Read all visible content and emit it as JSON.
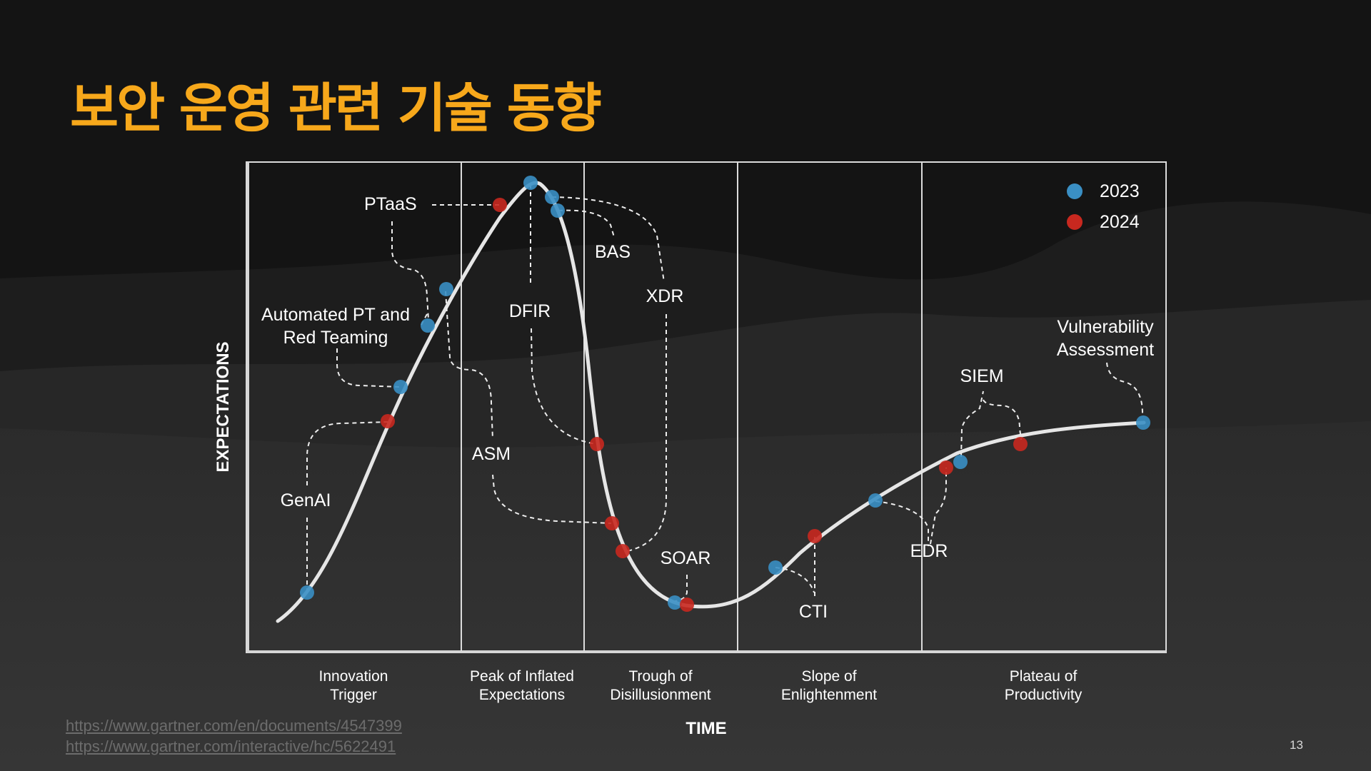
{
  "slide": {
    "title": "보안 운영 관련 기술 동향",
    "page_number": "13",
    "links": [
      "https://www.gartner.com/en/documents/4547399",
      "https://www.gartner.com/interactive/hc/5622491"
    ]
  },
  "chart": {
    "y_axis_label": "EXPECTATIONS",
    "x_axis_label": "TIME",
    "phases": [
      {
        "line1": "Innovation",
        "line2": "Trigger"
      },
      {
        "line1": "Peak of Inflated",
        "line2": "Expectations"
      },
      {
        "line1": "Trough of",
        "line2": "Disillusionment"
      },
      {
        "line1": "Slope of",
        "line2": "Enlightenment"
      },
      {
        "line1": "Plateau of",
        "line2": "Productivity"
      }
    ],
    "legend": [
      {
        "label": "2023",
        "color": "#3a8fc4"
      },
      {
        "label": "2024",
        "color": "#c8281f"
      }
    ],
    "technologies": [
      {
        "name": "GenAI",
        "year": "2023"
      },
      {
        "name": "GenAI",
        "year": "2024"
      },
      {
        "name": "Automated PT and Red Teaming",
        "year": "2023"
      },
      {
        "name": "PTaaS",
        "year": "2023"
      },
      {
        "name": "PTaaS",
        "year": "2024"
      },
      {
        "name": "ASM",
        "year": "2023"
      },
      {
        "name": "ASM",
        "year": "2024"
      },
      {
        "name": "DFIR",
        "year": "2023"
      },
      {
        "name": "DFIR",
        "year": "2024"
      },
      {
        "name": "BAS",
        "year": "2023"
      },
      {
        "name": "XDR",
        "year": "2023"
      },
      {
        "name": "XDR",
        "year": "2024"
      },
      {
        "name": "SOAR",
        "year": "2023"
      },
      {
        "name": "SOAR",
        "year": "2024"
      },
      {
        "name": "CTI",
        "year": "2023"
      },
      {
        "name": "CTI",
        "year": "2024"
      },
      {
        "name": "EDR",
        "year": "2023"
      },
      {
        "name": "EDR",
        "year": "2024"
      },
      {
        "name": "SIEM",
        "year": "2023"
      },
      {
        "name": "SIEM",
        "year": "2024"
      },
      {
        "name": "Vulnerability Assessment",
        "year": "2023"
      }
    ],
    "labels": {
      "ptaas": "PTaaS",
      "automated_line1": "Automated PT and",
      "automated_line2": "Red Teaming",
      "genai": "GenAI",
      "asm": "ASM",
      "dfir": "DFIR",
      "bas": "BAS",
      "xdr": "XDR",
      "soar": "SOAR",
      "cti": "CTI",
      "edr": "EDR",
      "siem": "SIEM",
      "vuln_line1": "Vulnerability",
      "vuln_line2": "Assessment"
    }
  }
}
